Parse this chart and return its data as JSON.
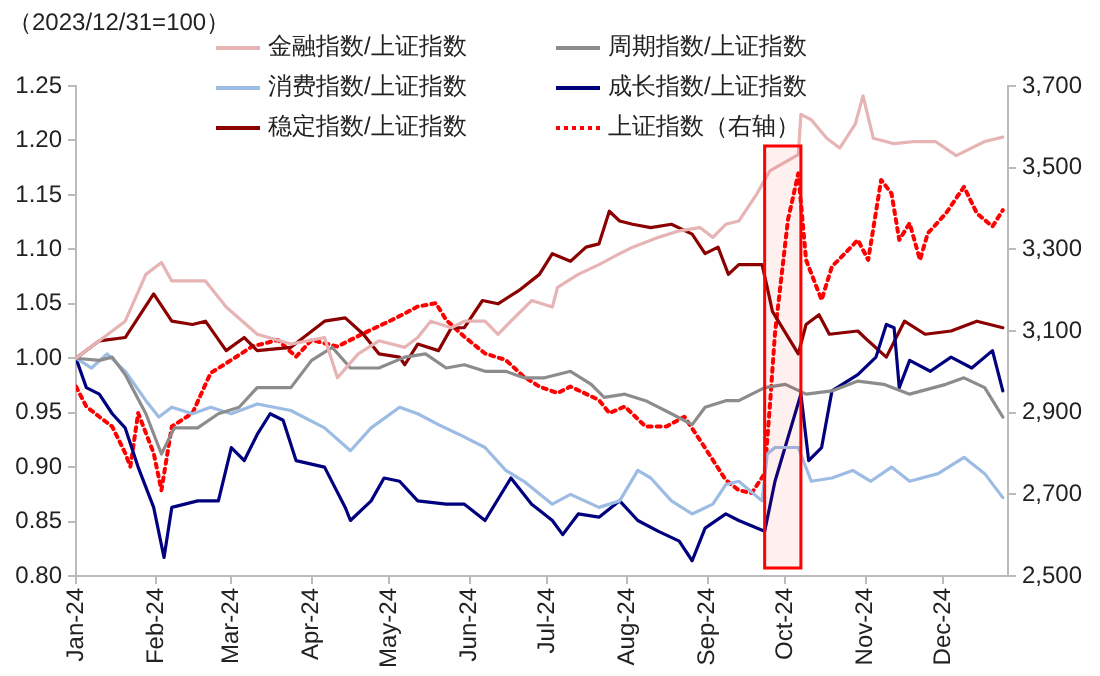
{
  "chart_data": {
    "type": "line",
    "ylabel": "（2023/12/31=100）",
    "legend": "top",
    "grid": false,
    "xlim": [
      "2024-01-01",
      "2024-12-26"
    ],
    "xticks": [
      {
        "value": "2024-01-01",
        "label": "Jan-24"
      },
      {
        "value": "2024-02-01",
        "label": "Feb-24"
      },
      {
        "value": "2024-03-01",
        "label": "Mar-24"
      },
      {
        "value": "2024-04-01",
        "label": "Apr-24"
      },
      {
        "value": "2024-05-01",
        "label": "May-24"
      },
      {
        "value": "2024-06-01",
        "label": "Jun-24"
      },
      {
        "value": "2024-07-01",
        "label": "Jul-24"
      },
      {
        "value": "2024-08-01",
        "label": "Aug-24"
      },
      {
        "value": "2024-09-01",
        "label": "Sep-24"
      },
      {
        "value": "2024-10-01",
        "label": "Oct-24"
      },
      {
        "value": "2024-11-01",
        "label": "Nov-24"
      },
      {
        "value": "2024-12-01",
        "label": "Dec-24"
      }
    ],
    "ylim": [
      0.8,
      1.25
    ],
    "yticks": [
      {
        "value": 0.8,
        "label": "0.80"
      },
      0.85,
      {
        "value": 0.9,
        "label": "0.90"
      },
      0.95,
      {
        "value": 1,
        "label": "1.00"
      },
      1.05,
      {
        "value": 1.1,
        "label": "1.10"
      },
      1.15,
      {
        "value": 1.2,
        "label": "1.20"
      },
      1.25
    ],
    "y2lim": [
      2500,
      3700
    ],
    "y2ticks": [
      {
        "value": 2500,
        "label": "2,500"
      },
      {
        "value": 2700,
        "label": "2,700"
      },
      {
        "value": 2900,
        "label": "2,900"
      },
      {
        "value": 3100,
        "label": "3,100"
      },
      {
        "value": 3300,
        "label": "3,300"
      },
      {
        "value": 3500,
        "label": "3,500"
      },
      {
        "value": 3700,
        "label": "3,700"
      }
    ],
    "bands": [
      {
        "axis": "x",
        "from": "2024-09-23",
        "to": "2024-10-07",
        "color": "#ff0000"
      }
    ],
    "series": [
      {
        "name": "金融指数/上证指数",
        "color": "#e6b4b4",
        "line_style": "solid",
        "x": [
          "2024-01-01",
          "2024-01-10",
          "2024-01-20",
          "2024-01-28",
          "2024-02-03",
          "2024-02-07",
          "2024-02-20",
          "2024-02-28",
          "2024-03-11",
          "2024-03-24",
          "2024-04-06",
          "2024-04-11",
          "2024-04-19",
          "2024-04-27",
          "2024-05-07",
          "2024-05-12",
          "2024-05-17",
          "2024-05-25",
          "2024-05-30",
          "2024-06-07",
          "2024-06-12",
          "2024-06-17",
          "2024-06-25",
          "2024-07-03",
          "2024-07-05",
          "2024-07-13",
          "2024-07-21",
          "2024-07-29",
          "2024-08-03",
          "2024-08-13",
          "2024-08-21",
          "2024-08-29",
          "2024-09-03",
          "2024-09-08",
          "2024-09-13",
          "2024-09-20",
          "2024-09-25",
          "2024-10-06",
          "2024-10-07",
          "2024-10-11",
          "2024-10-17",
          "2024-10-22",
          "2024-10-28",
          "2024-10-31",
          "2024-11-04",
          "2024-11-12",
          "2024-11-20",
          "2024-11-28",
          "2024-12-06",
          "2024-12-17",
          "2024-12-24"
        ],
        "values": [
          1.0,
          1.016,
          1.034,
          1.077,
          1.088,
          1.071,
          1.071,
          1.047,
          1.022,
          1.013,
          1.019,
          0.982,
          1.004,
          1.016,
          1.01,
          1.019,
          1.034,
          1.028,
          1.034,
          1.034,
          1.022,
          1.034,
          1.053,
          1.047,
          1.065,
          1.077,
          1.086,
          1.096,
          1.102,
          1.111,
          1.117,
          1.12,
          1.111,
          1.123,
          1.126,
          1.151,
          1.172,
          1.187,
          1.224,
          1.219,
          1.202,
          1.193,
          1.215,
          1.241,
          1.202,
          1.197,
          1.199,
          1.199,
          1.186,
          1.199,
          1.203
        ]
      },
      {
        "name": "周期指数/上证指数",
        "color": "#8c8c8c",
        "line_style": "solid",
        "x": [
          "2024-01-01",
          "2024-01-10",
          "2024-01-15",
          "2024-01-20",
          "2024-01-28",
          "2024-02-03",
          "2024-02-08",
          "2024-02-17",
          "2024-02-25",
          "2024-03-04",
          "2024-03-11",
          "2024-03-24",
          "2024-04-01",
          "2024-04-09",
          "2024-04-16",
          "2024-04-27",
          "2024-05-07",
          "2024-05-15",
          "2024-05-23",
          "2024-05-30",
          "2024-06-07",
          "2024-06-15",
          "2024-06-22",
          "2024-06-30",
          "2024-07-10",
          "2024-07-18",
          "2024-07-23",
          "2024-07-31",
          "2024-08-08",
          "2024-08-18",
          "2024-08-26",
          "2024-08-31",
          "2024-09-08",
          "2024-09-13",
          "2024-09-23",
          "2024-10-01",
          "2024-10-09",
          "2024-10-19",
          "2024-10-29",
          "2024-11-08",
          "2024-11-18",
          "2024-12-02",
          "2024-12-09",
          "2024-12-17",
          "2024-12-24"
        ],
        "values": [
          1.0,
          0.998,
          1.001,
          0.985,
          0.949,
          0.912,
          0.936,
          0.936,
          0.949,
          0.955,
          0.973,
          0.973,
          0.998,
          1.01,
          0.991,
          0.991,
          1.001,
          1.004,
          0.991,
          0.994,
          0.988,
          0.988,
          0.982,
          0.982,
          0.988,
          0.976,
          0.964,
          0.967,
          0.961,
          0.949,
          0.939,
          0.955,
          0.961,
          0.961,
          0.973,
          0.976,
          0.967,
          0.97,
          0.979,
          0.976,
          0.967,
          0.976,
          0.982,
          0.973,
          0.946
        ]
      },
      {
        "name": "消费指数/上证指数",
        "color": "#9dbce3",
        "line_style": "solid",
        "x": [
          "2024-01-01",
          "2024-01-07",
          "2024-01-13",
          "2024-01-20",
          "2024-01-28",
          "2024-02-02",
          "2024-02-07",
          "2024-02-15",
          "2024-02-22",
          "2024-03-01",
          "2024-03-11",
          "2024-03-24",
          "2024-04-06",
          "2024-04-16",
          "2024-04-24",
          "2024-05-05",
          "2024-05-12",
          "2024-05-20",
          "2024-05-28",
          "2024-06-07",
          "2024-06-15",
          "2024-06-22",
          "2024-07-03",
          "2024-07-10",
          "2024-07-21",
          "2024-07-29",
          "2024-08-05",
          "2024-08-10",
          "2024-08-18",
          "2024-08-26",
          "2024-09-03",
          "2024-09-08",
          "2024-09-13",
          "2024-09-22",
          "2024-09-24",
          "2024-09-27",
          "2024-10-06",
          "2024-10-11",
          "2024-10-19",
          "2024-10-27",
          "2024-11-03",
          "2024-11-11",
          "2024-11-18",
          "2024-11-29",
          "2024-12-09",
          "2024-12-17",
          "2024-12-24"
        ],
        "values": [
          1.0,
          0.991,
          1.004,
          0.988,
          0.961,
          0.946,
          0.955,
          0.949,
          0.955,
          0.949,
          0.958,
          0.952,
          0.936,
          0.915,
          0.936,
          0.955,
          0.949,
          0.939,
          0.93,
          0.918,
          0.897,
          0.887,
          0.866,
          0.875,
          0.863,
          0.869,
          0.897,
          0.89,
          0.869,
          0.857,
          0.866,
          0.884,
          0.887,
          0.869,
          0.912,
          0.918,
          0.918,
          0.887,
          0.89,
          0.897,
          0.887,
          0.9,
          0.887,
          0.894,
          0.909,
          0.894,
          0.872
        ]
      },
      {
        "name": "成长指数/上证指数",
        "color": "#00007f",
        "line_style": "solid",
        "x": [
          "2024-01-01",
          "2024-01-05",
          "2024-01-10",
          "2024-01-15",
          "2024-01-20",
          "2024-01-25",
          "2024-01-31",
          "2024-02-04",
          "2024-02-07",
          "2024-02-17",
          "2024-02-25",
          "2024-03-01",
          "2024-03-06",
          "2024-03-11",
          "2024-03-16",
          "2024-03-21",
          "2024-03-26",
          "2024-04-06",
          "2024-04-14",
          "2024-04-16",
          "2024-04-24",
          "2024-04-29",
          "2024-05-05",
          "2024-05-12",
          "2024-05-23",
          "2024-05-30",
          "2024-06-07",
          "2024-06-17",
          "2024-06-25",
          "2024-07-03",
          "2024-07-07",
          "2024-07-13",
          "2024-07-21",
          "2024-07-29",
          "2024-08-05",
          "2024-08-13",
          "2024-08-21",
          "2024-08-26",
          "2024-08-31",
          "2024-09-08",
          "2024-09-13",
          "2024-09-23",
          "2024-09-27",
          "2024-10-07",
          "2024-10-10",
          "2024-10-15",
          "2024-10-19",
          "2024-10-29",
          "2024-11-05",
          "2024-11-09",
          "2024-11-12",
          "2024-11-14",
          "2024-11-18",
          "2024-11-26",
          "2024-12-04",
          "2024-12-12",
          "2024-12-20",
          "2024-12-24"
        ],
        "values": [
          1.0,
          0.973,
          0.967,
          0.949,
          0.936,
          0.9,
          0.863,
          0.817,
          0.863,
          0.869,
          0.869,
          0.918,
          0.906,
          0.93,
          0.949,
          0.943,
          0.906,
          0.9,
          0.863,
          0.851,
          0.869,
          0.89,
          0.887,
          0.869,
          0.866,
          0.866,
          0.851,
          0.89,
          0.866,
          0.851,
          0.838,
          0.857,
          0.854,
          0.869,
          0.851,
          0.841,
          0.832,
          0.814,
          0.844,
          0.857,
          0.851,
          0.841,
          0.887,
          0.967,
          0.906,
          0.918,
          0.97,
          0.985,
          1.001,
          1.031,
          1.028,
          0.973,
          0.998,
          0.988,
          1.001,
          0.991,
          1.007,
          0.97
        ]
      },
      {
        "name": "稳定指数/上证指数",
        "color": "#8b0000",
        "line_style": "solid",
        "x": [
          "2024-01-01",
          "2024-01-10",
          "2024-01-20",
          "2024-01-31",
          "2024-02-07",
          "2024-02-15",
          "2024-02-20",
          "2024-02-28",
          "2024-03-06",
          "2024-03-11",
          "2024-03-24",
          "2024-04-06",
          "2024-04-14",
          "2024-04-21",
          "2024-04-27",
          "2024-05-05",
          "2024-05-07",
          "2024-05-12",
          "2024-05-20",
          "2024-05-25",
          "2024-05-30",
          "2024-06-06",
          "2024-06-12",
          "2024-06-20",
          "2024-06-28",
          "2024-07-03",
          "2024-07-10",
          "2024-07-16",
          "2024-07-21",
          "2024-07-25",
          "2024-07-29",
          "2024-08-03",
          "2024-08-10",
          "2024-08-18",
          "2024-08-26",
          "2024-08-31",
          "2024-09-05",
          "2024-09-09",
          "2024-09-13",
          "2024-09-22",
          "2024-09-24",
          "2024-09-26",
          "2024-10-06",
          "2024-10-09",
          "2024-10-14",
          "2024-10-18",
          "2024-10-29",
          "2024-11-02",
          "2024-11-09",
          "2024-11-16",
          "2024-11-24",
          "2024-12-04",
          "2024-12-14",
          "2024-12-24"
        ],
        "values": [
          1.0,
          1.016,
          1.019,
          1.059,
          1.034,
          1.031,
          1.034,
          1.007,
          1.019,
          1.007,
          1.01,
          1.034,
          1.037,
          1.022,
          1.004,
          1.001,
          0.994,
          1.013,
          1.007,
          1.028,
          1.028,
          1.053,
          1.05,
          1.062,
          1.077,
          1.096,
          1.089,
          1.102,
          1.105,
          1.135,
          1.126,
          1.123,
          1.12,
          1.123,
          1.114,
          1.096,
          1.102,
          1.077,
          1.086,
          1.086,
          1.065,
          1.043,
          1.004,
          1.031,
          1.04,
          1.022,
          1.025,
          1.016,
          1.001,
          1.034,
          1.022,
          1.025,
          1.034,
          1.028
        ]
      },
      {
        "name": "上证指数（右轴）",
        "color": "#ff0000",
        "line_style": "dotted",
        "axis": "y2",
        "x": [
          "2024-01-01",
          "2024-01-05",
          "2024-01-10",
          "2024-01-15",
          "2024-01-20",
          "2024-01-22",
          "2024-01-25",
          "2024-01-31",
          "2024-02-03",
          "2024-02-07",
          "2024-02-15",
          "2024-02-22",
          "2024-03-01",
          "2024-03-09",
          "2024-03-19",
          "2024-03-26",
          "2024-04-01",
          "2024-04-11",
          "2024-04-21",
          "2024-05-02",
          "2024-05-07",
          "2024-05-12",
          "2024-05-19",
          "2024-05-23",
          "2024-05-30",
          "2024-06-07",
          "2024-06-15",
          "2024-06-22",
          "2024-06-28",
          "2024-07-05",
          "2024-07-10",
          "2024-07-21",
          "2024-07-25",
          "2024-07-31",
          "2024-08-08",
          "2024-08-16",
          "2024-08-23",
          "2024-08-29",
          "2024-09-03",
          "2024-09-08",
          "2024-09-13",
          "2024-09-18",
          "2024-09-23",
          "2024-09-25",
          "2024-09-27",
          "2024-10-02",
          "2024-10-06",
          "2024-10-09",
          "2024-10-12",
          "2024-10-15",
          "2024-10-19",
          "2024-10-24",
          "2024-10-29",
          "2024-11-02",
          "2024-11-07",
          "2024-11-11",
          "2024-11-14",
          "2024-11-18",
          "2024-11-22",
          "2024-11-25",
          "2024-12-02",
          "2024-12-09",
          "2024-12-14",
          "2024-12-20",
          "2024-12-24"
        ],
        "values": [
          2964,
          2915,
          2890,
          2866,
          2801,
          2768,
          2899,
          2801,
          2710,
          2866,
          2899,
          2997,
          3029,
          3062,
          3078,
          3037,
          3078,
          3062,
          3094,
          3127,
          3143,
          3160,
          3168,
          3127,
          3086,
          3045,
          3029,
          2988,
          2964,
          2948,
          2964,
          2931,
          2899,
          2915,
          2866,
          2866,
          2890,
          2833,
          2784,
          2735,
          2710,
          2703,
          2751,
          2915,
          3095,
          3372,
          3486,
          3274,
          3225,
          3176,
          3258,
          3290,
          3323,
          3274,
          3470,
          3437,
          3323,
          3364,
          3274,
          3339,
          3388,
          3453,
          3388,
          3356,
          3396
        ]
      }
    ]
  }
}
